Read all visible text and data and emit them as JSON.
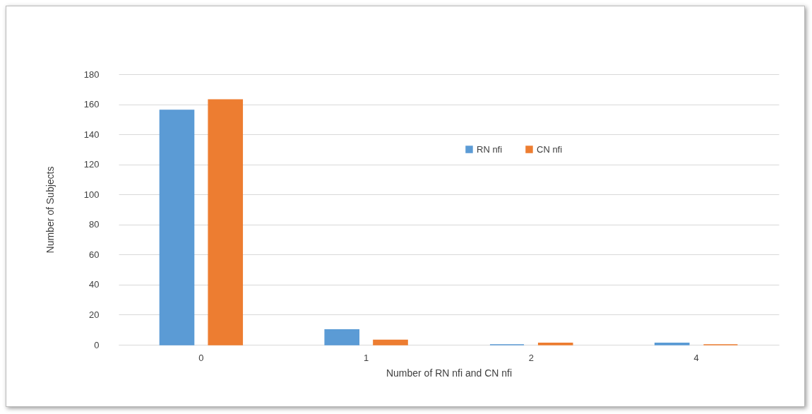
{
  "chart_data": {
    "type": "bar",
    "xlabel": "Number of RN nfi and CN nfi",
    "ylabel": "Number of Subjects",
    "categories": [
      "0",
      "1",
      "2",
      "4"
    ],
    "series": [
      {
        "name": "RN nfi",
        "color": "#5b9bd5",
        "values": [
          156,
          10,
          0,
          1
        ]
      },
      {
        "name": "CN nfi",
        "color": "#ed7d31",
        "values": [
          163,
          3,
          1,
          0
        ]
      }
    ],
    "ylim": [
      0,
      180
    ],
    "yticks": [
      0,
      20,
      40,
      60,
      80,
      100,
      120,
      140,
      160,
      180
    ],
    "grid": "y",
    "legend": "top right"
  }
}
